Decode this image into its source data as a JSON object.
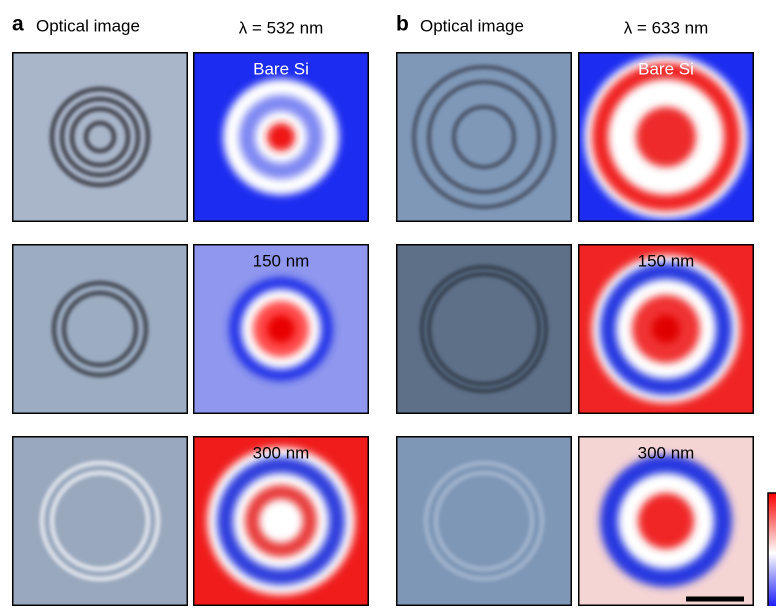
{
  "panels": [
    {
      "label": "a",
      "optical_title": "Optical image",
      "map_title": "λ = 532 nm",
      "rows": [
        {
          "map_label": "Bare Si"
        },
        {
          "map_label": "150 nm"
        },
        {
          "map_label": "300 nm"
        }
      ]
    },
    {
      "label": "b",
      "optical_title": "Optical image",
      "map_title": "λ = 633 nm",
      "rows": [
        {
          "map_label": "Bare Si"
        },
        {
          "map_label": "150 nm"
        },
        {
          "map_label": "300 nm"
        }
      ]
    }
  ]
}
